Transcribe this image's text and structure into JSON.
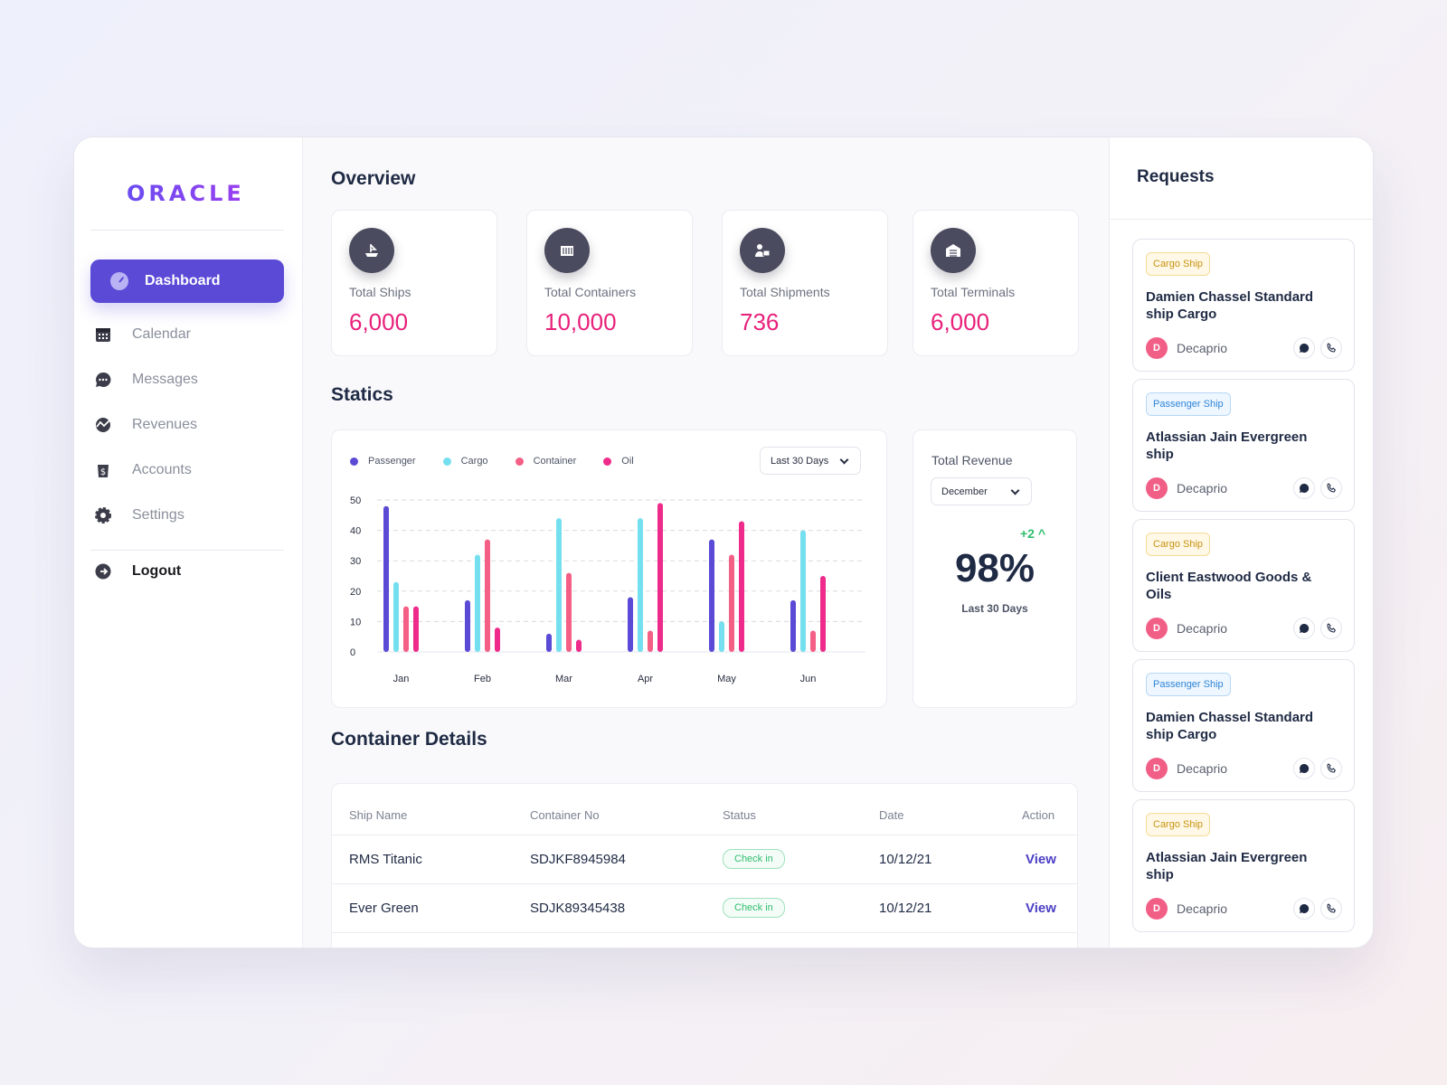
{
  "brand": {
    "logo_text": "ORACLE"
  },
  "sidebar": {
    "active": {
      "label": "Dashboard",
      "icon": "dashboard-icon"
    },
    "items": [
      {
        "label": "Calendar",
        "icon": "calendar-icon"
      },
      {
        "label": "Messages",
        "icon": "messages-icon"
      },
      {
        "label": "Revenues",
        "icon": "revenues-icon"
      },
      {
        "label": "Accounts",
        "icon": "accounts-icon"
      },
      {
        "label": "Settings",
        "icon": "settings-icon"
      }
    ],
    "logout": {
      "label": "Logout",
      "icon": "logout-icon"
    }
  },
  "overview": {
    "title": "Overview",
    "cards": [
      {
        "label": "Total Ships",
        "value": "6,000",
        "icon": "ship-icon"
      },
      {
        "label": "Total Containers",
        "value": "10,000",
        "icon": "container-icon"
      },
      {
        "label": "Total Shipments",
        "value": "736",
        "icon": "shipment-icon"
      },
      {
        "label": "Total Terminals",
        "value": "6,000",
        "icon": "terminal-icon"
      }
    ],
    "accent_color": "#e8217b"
  },
  "statics": {
    "title": "Statics",
    "range_dropdown": "Last 30 Days"
  },
  "chart_data": {
    "type": "bar",
    "categories": [
      "Jan",
      "Feb",
      "Mar",
      "Apr",
      "May",
      "Jun"
    ],
    "series": [
      {
        "name": "Passenger",
        "color": "#5a4ad6",
        "values": [
          48,
          17,
          6,
          18,
          37,
          17
        ]
      },
      {
        "name": "Cargo",
        "color": "#74e0ef",
        "values": [
          23,
          32,
          44,
          44,
          10,
          40
        ]
      },
      {
        "name": "Container",
        "color": "#f35f85",
        "values": [
          15,
          37,
          26,
          7,
          32,
          7
        ]
      },
      {
        "name": "Oil",
        "color": "#ee2b8a",
        "values": [
          15,
          8,
          4,
          49,
          43,
          25
        ]
      }
    ],
    "y_ticks": [
      "0",
      "10",
      "20",
      "30",
      "40",
      "50"
    ],
    "ylim": [
      0,
      50
    ],
    "grid": true,
    "legend": "top-left"
  },
  "revenue": {
    "title": "Total Revenue",
    "month_dropdown": "December",
    "change": "+2 ^",
    "percent": "98%",
    "period": "Last 30 Days"
  },
  "container_details": {
    "title": "Container Details",
    "columns": [
      "Ship Name",
      "Container No",
      "Status",
      "Date",
      "Action"
    ],
    "rows": [
      {
        "ship": "RMS Titanic",
        "container": "SDJKF8945984",
        "status": "Check in",
        "date": "10/12/21",
        "action": "View"
      },
      {
        "ship": "Ever Green",
        "container": "SDJK89345438",
        "status": "Check in",
        "date": "10/12/21",
        "action": "View"
      }
    ]
  },
  "requests": {
    "title": "Requests",
    "items": [
      {
        "tag": "Cargo Ship",
        "type": "cargo",
        "name": "Damien Chassel Standard ship Cargo",
        "user": "Decaprio",
        "initial": "D"
      },
      {
        "tag": "Passenger Ship",
        "type": "pass",
        "name": "Atlassian Jain Evergreen ship",
        "user": "Decaprio",
        "initial": "D"
      },
      {
        "tag": "Cargo Ship",
        "type": "cargo",
        "name": "Client Eastwood Goods & Oils",
        "user": "Decaprio",
        "initial": "D"
      },
      {
        "tag": "Passenger Ship",
        "type": "pass",
        "name": "Damien Chassel Standard ship Cargo",
        "user": "Decaprio",
        "initial": "D"
      },
      {
        "tag": "Cargo Ship",
        "type": "cargo",
        "name": "Atlassian Jain Evergreen ship",
        "user": "Decaprio",
        "initial": "D"
      }
    ]
  }
}
